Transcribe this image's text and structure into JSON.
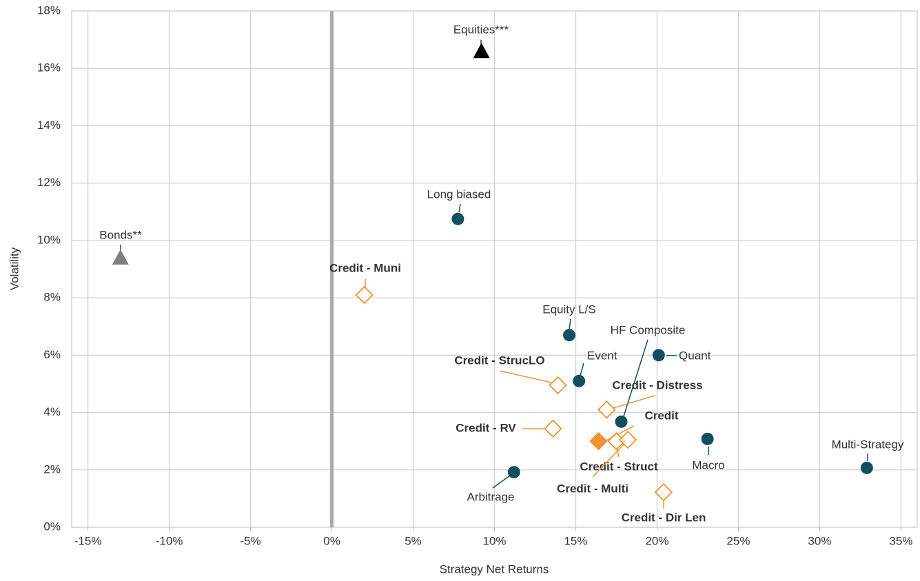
{
  "chart_data": {
    "type": "scatter",
    "x_label": "Strategy Net Returns",
    "y_label": "Volatility",
    "xlim": [
      -16,
      36
    ],
    "ylim": [
      0,
      18
    ],
    "xticks": [
      {
        "value": -15,
        "label": "-15%"
      },
      {
        "value": -10,
        "label": "-10%"
      },
      {
        "value": -5,
        "label": "-5%"
      },
      {
        "value": 0,
        "label": "0%"
      },
      {
        "value": 5,
        "label": "5%"
      },
      {
        "value": 10,
        "label": "10%"
      },
      {
        "value": 15,
        "label": "15%"
      },
      {
        "value": 20,
        "label": "20%"
      },
      {
        "value": 25,
        "label": "25%"
      },
      {
        "value": 30,
        "label": "30%"
      },
      {
        "value": 35,
        "label": "35%"
      }
    ],
    "yticks": [
      {
        "value": 0,
        "label": "0%"
      },
      {
        "value": 2,
        "label": "2%"
      },
      {
        "value": 4,
        "label": "4%"
      },
      {
        "value": 6,
        "label": "6%"
      },
      {
        "value": 8,
        "label": "8%"
      },
      {
        "value": 10,
        "label": "10%"
      },
      {
        "value": 12,
        "label": "12%"
      },
      {
        "value": 14,
        "label": "14%"
      },
      {
        "value": 16,
        "label": "16%"
      },
      {
        "value": 18,
        "label": "18%"
      }
    ],
    "grid": true,
    "zero_line": true,
    "points": [
      {
        "label": "Equities***",
        "x": 9.2,
        "y": 16.6,
        "marker": "triangle",
        "color": "#000000",
        "bold": false
      },
      {
        "label": "Bonds**",
        "x": -13,
        "y": 9.4,
        "marker": "triangle",
        "color": "#7f7f7f",
        "bold": false
      },
      {
        "label": "Long biased",
        "x": 7.75,
        "y": 10.75,
        "marker": "circle",
        "color": "#12505f",
        "bold": false
      },
      {
        "label": "Credit - Muni",
        "x": 2.0,
        "y": 8.1,
        "marker": "diamond-open",
        "color": "#f0922e",
        "bold": true
      },
      {
        "label": "Equity L/S",
        "x": 14.6,
        "y": 6.7,
        "marker": "circle",
        "color": "#12505f",
        "bold": false
      },
      {
        "label": "HF Composite",
        "x": 17.8,
        "y": 3.68,
        "marker": "circle",
        "color": "#12505f",
        "bold": false
      },
      {
        "label": "Quant",
        "x": 20.1,
        "y": 6.0,
        "marker": "circle",
        "color": "#12505f",
        "bold": false
      },
      {
        "label": "Event",
        "x": 15.2,
        "y": 5.1,
        "marker": "circle",
        "color": "#12505f",
        "bold": false
      },
      {
        "label": "Credit - StrucLO",
        "x": 13.9,
        "y": 4.95,
        "marker": "diamond-open",
        "color": "#f0922e",
        "bold": true
      },
      {
        "label": "Credit - Distress",
        "x": 16.9,
        "y": 4.1,
        "marker": "diamond-open",
        "color": "#f0922e",
        "bold": true
      },
      {
        "label": "Credit - RV",
        "x": 13.6,
        "y": 3.44,
        "marker": "diamond-open",
        "color": "#f0922e",
        "bold": true
      },
      {
        "label": "Credit",
        "x": 16.4,
        "y": 3.0,
        "marker": "diamond",
        "color": "#f0922e",
        "bold": true
      },
      {
        "label": "Credit - Struct",
        "x": 17.5,
        "y": 3.0,
        "marker": "diamond-open",
        "color": "#f0922e",
        "bold": true
      },
      {
        "label": "Credit - Multi",
        "x": 18.2,
        "y": 3.05,
        "marker": "diamond-open",
        "color": "#f0922e",
        "bold": true
      },
      {
        "label": "Macro",
        "x": 23.1,
        "y": 3.08,
        "marker": "circle",
        "color": "#12505f",
        "bold": false
      },
      {
        "label": "Multi-Strategy",
        "x": 32.9,
        "y": 2.07,
        "marker": "circle",
        "color": "#12505f",
        "bold": false
      },
      {
        "label": "Arbitrage",
        "x": 11.2,
        "y": 1.92,
        "marker": "circle",
        "color": "#12505f",
        "bold": false
      },
      {
        "label": "Credit - Dir Len",
        "x": 20.4,
        "y": 1.22,
        "marker": "diamond-open",
        "color": "#f0922e",
        "bold": true
      }
    ]
  }
}
